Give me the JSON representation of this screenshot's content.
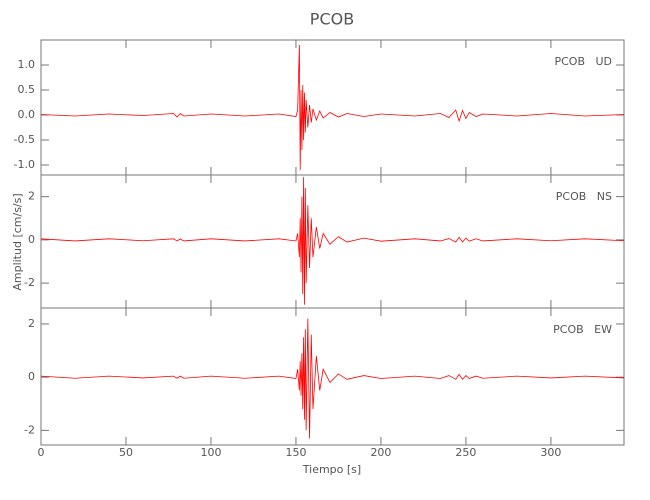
{
  "chart_data": [
    {
      "type": "line",
      "title": "PCOB",
      "label": "PCOB   UD",
      "x": [
        0,
        20,
        40,
        60,
        78,
        80,
        82,
        84,
        100,
        120,
        140,
        150,
        151,
        152,
        152.5,
        153,
        153.5,
        154,
        154.5,
        155,
        155.5,
        156,
        157,
        158,
        159,
        160,
        162,
        164,
        166,
        170,
        175,
        180,
        190,
        200,
        220,
        235,
        240,
        244,
        246,
        248,
        250,
        252,
        256,
        260,
        280,
        300,
        320,
        343
      ],
      "series": [
        {
          "name": "UD",
          "color": "#ff0000",
          "values": [
            0.01,
            -0.02,
            0.02,
            -0.01,
            0.03,
            -0.04,
            0.03,
            -0.02,
            0.02,
            -0.02,
            0.02,
            -0.03,
            0.1,
            1.4,
            -1.1,
            0.5,
            -0.7,
            0.6,
            -0.5,
            0.45,
            -0.35,
            0.3,
            -0.25,
            0.2,
            -0.15,
            0.12,
            -0.1,
            0.08,
            -0.06,
            0.05,
            -0.04,
            0.03,
            -0.03,
            0.02,
            -0.02,
            0.03,
            -0.05,
            0.1,
            -0.12,
            0.09,
            -0.07,
            0.05,
            -0.03,
            0.02,
            -0.02,
            0.03,
            -0.02,
            0.01
          ]
        }
      ],
      "xlim": [
        0,
        343
      ],
      "xticks": [
        0,
        50,
        100,
        150,
        200,
        250,
        300
      ],
      "ylim": [
        -1.2,
        1.5
      ],
      "yticks": [
        {
          "value": -1,
          "label": "-1.0"
        },
        {
          "value": -0.5,
          "label": "-0.5"
        },
        {
          "value": 0,
          "label": "0.0"
        },
        {
          "value": 0.5,
          "label": "0.5"
        },
        {
          "value": 1,
          "label": "1.0"
        }
      ]
    },
    {
      "type": "line",
      "label": "PCOB   NS",
      "ylabel": "Amplitud [cm/s/s]",
      "x": [
        0,
        20,
        40,
        60,
        78,
        80,
        82,
        84,
        100,
        120,
        140,
        150,
        151,
        152,
        152.5,
        153,
        153.5,
        154,
        154.5,
        155,
        155.5,
        156,
        157,
        158,
        159,
        160,
        162,
        164,
        166,
        170,
        175,
        180,
        190,
        200,
        220,
        235,
        240,
        244,
        246,
        248,
        250,
        252,
        256,
        260,
        280,
        300,
        320,
        343
      ],
      "series": [
        {
          "name": "NS",
          "color": "#ff0000",
          "values": [
            0.05,
            -0.05,
            0.05,
            -0.04,
            0.05,
            -0.05,
            0.04,
            -0.05,
            0.05,
            -0.05,
            0.05,
            -0.05,
            0.3,
            -0.8,
            1.0,
            -1.5,
            2.0,
            -2.5,
            2.9,
            -3.0,
            2.4,
            -2.0,
            1.6,
            -1.3,
            1.0,
            -0.8,
            0.6,
            -0.4,
            0.3,
            -0.2,
            0.15,
            -0.1,
            0.08,
            -0.06,
            0.05,
            -0.05,
            0.06,
            -0.1,
            0.12,
            -0.1,
            0.08,
            -0.06,
            0.05,
            -0.05,
            0.05,
            -0.04,
            0.05,
            -0.04
          ]
        }
      ],
      "xlim": [
        0,
        343
      ],
      "xticks": [
        0,
        50,
        100,
        150,
        200,
        250,
        300
      ],
      "ylim": [
        -3.15,
        3.0
      ],
      "yticks": [
        -2,
        0,
        2
      ]
    },
    {
      "type": "line",
      "label": "PCOB   EW",
      "xlabel": "Tiempo [s]",
      "x": [
        0,
        20,
        40,
        60,
        78,
        80,
        82,
        84,
        100,
        120,
        140,
        150,
        151,
        152,
        152.5,
        153,
        153.5,
        154,
        154.5,
        155,
        155.5,
        156,
        157,
        158,
        159,
        160,
        162,
        164,
        166,
        170,
        175,
        180,
        190,
        200,
        220,
        235,
        240,
        244,
        246,
        248,
        250,
        252,
        256,
        260,
        280,
        300,
        320,
        343
      ],
      "series": [
        {
          "name": "EW",
          "color": "#ff0000",
          "values": [
            0.04,
            -0.04,
            0.04,
            -0.03,
            0.04,
            -0.04,
            0.04,
            -0.04,
            0.04,
            -0.04,
            0.04,
            -0.05,
            0.3,
            -0.5,
            0.6,
            -0.7,
            0.9,
            -1.2,
            1.5,
            -1.6,
            1.8,
            -2.0,
            2.2,
            -2.3,
            1.6,
            -1.2,
            0.8,
            -0.5,
            0.3,
            -0.2,
            0.12,
            -0.08,
            0.06,
            -0.05,
            0.04,
            -0.05,
            0.06,
            -0.08,
            0.1,
            -0.08,
            0.06,
            -0.05,
            0.04,
            -0.04,
            0.04,
            -0.03,
            0.04,
            -0.03
          ]
        }
      ],
      "xlim": [
        0,
        343
      ],
      "xticks": [
        0,
        50,
        100,
        150,
        200,
        250,
        300
      ],
      "ylim": [
        -2.55,
        2.6
      ],
      "yticks": [
        -2,
        0,
        2
      ]
    }
  ]
}
